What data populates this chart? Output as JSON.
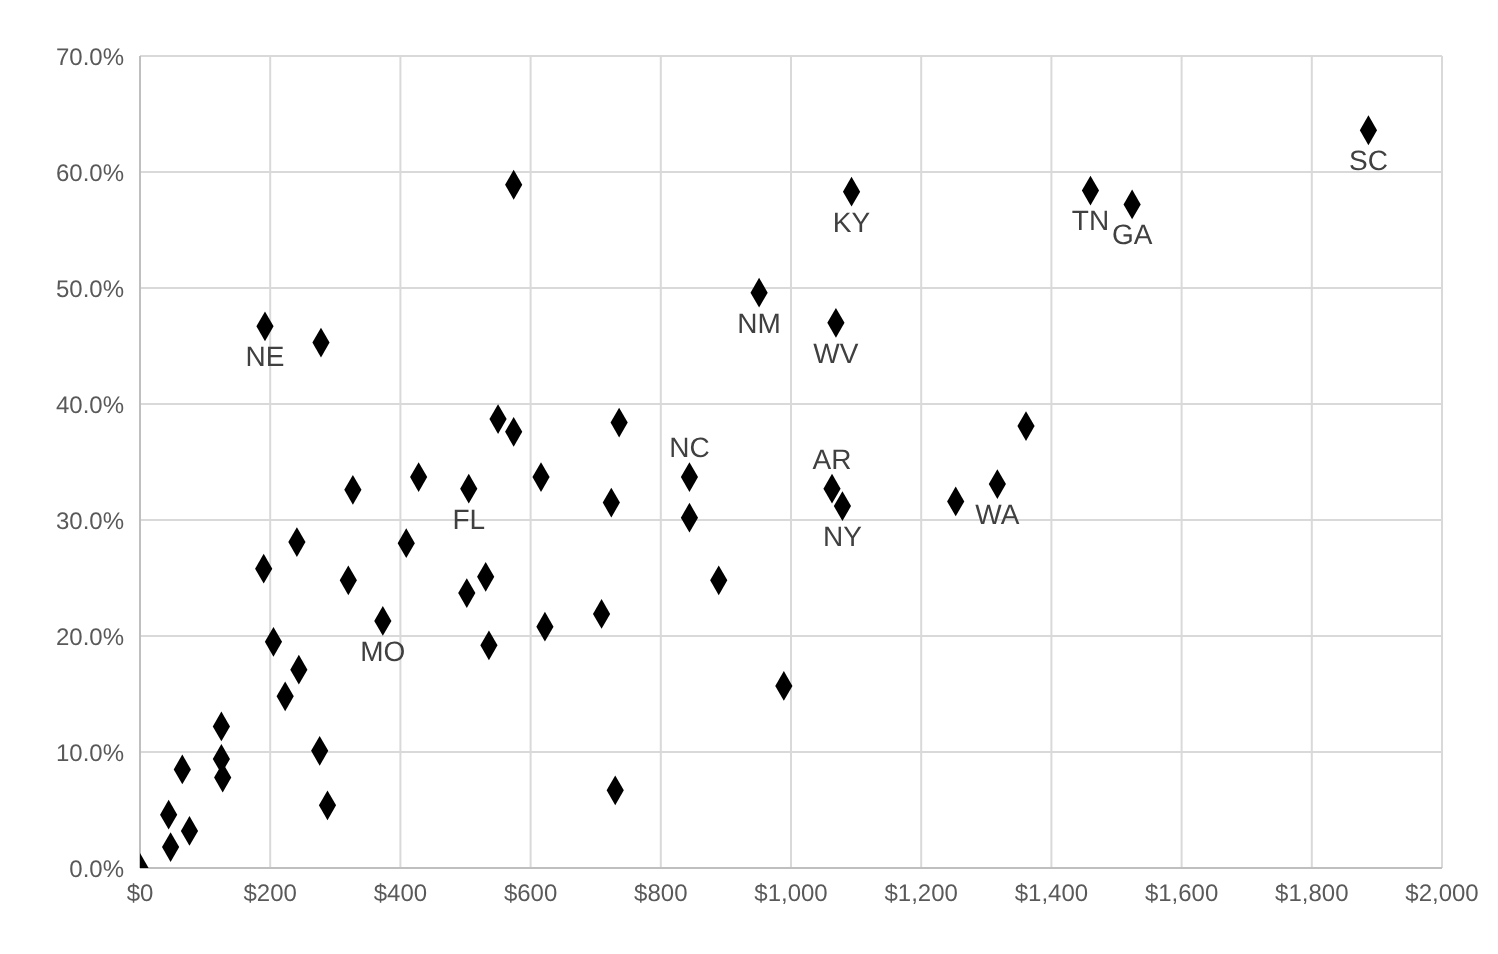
{
  "chart_data": {
    "type": "scatter",
    "marker": "diamond",
    "grid": true,
    "legend": false,
    "xlim": [
      0,
      2000
    ],
    "ylim": [
      0,
      70
    ],
    "xticks": [
      {
        "value": 0,
        "label": "$0"
      },
      {
        "value": 200,
        "label": "$200"
      },
      {
        "value": 400,
        "label": "$400"
      },
      {
        "value": 600,
        "label": "$600"
      },
      {
        "value": 800,
        "label": "$800"
      },
      {
        "value": 1000,
        "label": "$1,000"
      },
      {
        "value": 1200,
        "label": "$1,200"
      },
      {
        "value": 1400,
        "label": "$1,400"
      },
      {
        "value": 1600,
        "label": "$1,600"
      },
      {
        "value": 1800,
        "label": "$1,800"
      },
      {
        "value": 2000,
        "label": "$2,000"
      }
    ],
    "yticks": [
      {
        "value": 0,
        "label": "0.0%"
      },
      {
        "value": 10,
        "label": "10.0%"
      },
      {
        "value": 20,
        "label": "20.0%"
      },
      {
        "value": 30,
        "label": "30.0%"
      },
      {
        "value": 40,
        "label": "40.0%"
      },
      {
        "value": 50,
        "label": "50.0%"
      },
      {
        "value": 60,
        "label": "60.0%"
      },
      {
        "value": 70,
        "label": "70.0%"
      }
    ],
    "series": [
      {
        "color": "#000000",
        "x": [
          0,
          44,
          47,
          76,
          65,
          125,
          125,
          127,
          205,
          223,
          244,
          190,
          241,
          276,
          288,
          192,
          278,
          327,
          320,
          373,
          409,
          428,
          505,
          502,
          531,
          536,
          550,
          574,
          616,
          622,
          574,
          736,
          724,
          709,
          730,
          844,
          844,
          889,
          989,
          951,
          1069,
          1093,
          1063,
          1079,
          1253,
          1317,
          1361,
          1460,
          1524,
          1887
        ],
        "values": [
          0,
          4.6,
          1.8,
          3.2,
          8.5,
          12.2,
          9.4,
          7.8,
          19.5,
          14.8,
          17.1,
          25.8,
          28.1,
          10.1,
          5.4,
          46.7,
          45.3,
          32.6,
          24.8,
          21.3,
          28.0,
          33.7,
          32.7,
          23.7,
          25.1,
          19.2,
          38.7,
          37.6,
          33.7,
          20.8,
          58.9,
          38.4,
          31.5,
          21.9,
          6.7,
          33.7,
          30.2,
          24.8,
          15.7,
          49.6,
          47.0,
          58.3,
          32.7,
          31.2,
          31.6,
          33.1,
          38.1,
          58.4,
          57.2,
          63.6
        ]
      }
    ],
    "annotations": [
      {
        "text": "NE",
        "x": 192,
        "y": 46.7
      },
      {
        "text": "MO",
        "x": 373,
        "y": 21.3
      },
      {
        "text": "FL",
        "x": 505,
        "y": 32.7
      },
      {
        "text": "NC",
        "x": 844,
        "y": 33.7
      },
      {
        "text": "NM",
        "x": 951,
        "y": 49.6
      },
      {
        "text": "WV",
        "x": 1069,
        "y": 47.0
      },
      {
        "text": "KY",
        "x": 1093,
        "y": 58.3
      },
      {
        "text": "AR",
        "x": 1063,
        "y": 32.7
      },
      {
        "text": "NY",
        "x": 1079,
        "y": 31.2
      },
      {
        "text": "WA",
        "x": 1317,
        "y": 33.1
      },
      {
        "text": "TN",
        "x": 1460,
        "y": 58.4
      },
      {
        "text": "GA",
        "x": 1524,
        "y": 57.2
      },
      {
        "text": "SC",
        "x": 1887,
        "y": 63.6
      }
    ]
  }
}
